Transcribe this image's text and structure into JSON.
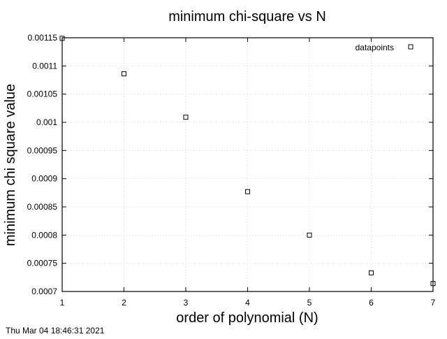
{
  "chart_data": {
    "type": "scatter",
    "title": "minimum chi-square vs N",
    "xlabel": "order of polynomial (N)",
    "ylabel": "minimum chi square value",
    "xlim": [
      1,
      7
    ],
    "ylim": [
      0.0007,
      0.00115
    ],
    "x_ticks": [
      1,
      2,
      3,
      4,
      5,
      6,
      7
    ],
    "y_ticks": [
      0.0007,
      0.00075,
      0.0008,
      0.00085,
      0.0009,
      0.00095,
      0.001,
      0.00105,
      0.0011,
      0.00115
    ],
    "x_tick_labels": [
      "1",
      "2",
      "3",
      "4",
      "5",
      "6",
      "7"
    ],
    "y_tick_labels": [
      "0.0007",
      "0.00075",
      "0.0008",
      "0.00085",
      "0.0009",
      "0.00095",
      "0.001",
      "0.00105",
      "0.0011",
      "0.00115"
    ],
    "grid": true,
    "legend_position": "top-right",
    "marker": "open-square",
    "series": [
      {
        "name": "datapoints",
        "x": [
          1,
          2,
          3,
          4,
          5,
          6,
          7
        ],
        "y": [
          0.001149,
          0.001086,
          0.001009,
          0.000877,
          0.0008,
          0.000733,
          0.000714
        ]
      }
    ]
  },
  "footer": {
    "timestamp": "Thu Mar 04 18:46:31 2021"
  }
}
